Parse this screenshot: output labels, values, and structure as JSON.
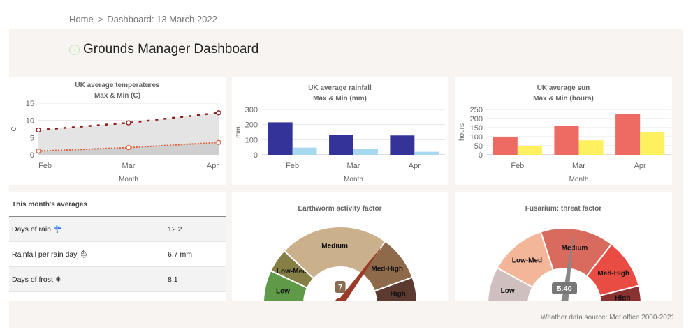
{
  "breadcrumb": {
    "home": "Home",
    "separator": ">",
    "current": "Dashboard: 13 March 2022"
  },
  "page_title": "Grounds Manager Dashboard",
  "chart_data": [
    {
      "type": "line",
      "title": "UK average temperatures",
      "subtitle": "Max & Min (C)",
      "xlabel": "Month",
      "ylabel": "C",
      "categories": [
        "Feb",
        "Mar",
        "Apr"
      ],
      "ylim": [
        0,
        15
      ],
      "yticks": [
        0,
        5,
        10,
        15
      ],
      "series": [
        {
          "values": [
            7.2,
            9.3,
            12.2
          ],
          "color": "#8b1a1a"
        },
        {
          "values": [
            1.1,
            2.1,
            3.6
          ],
          "color": "#e0603c"
        }
      ]
    },
    {
      "type": "bar",
      "title": "UK average rainfall",
      "subtitle": "Max & Min (mm)",
      "xlabel": "Month",
      "ylabel": "mm",
      "categories": [
        "Feb",
        "Mar",
        "Apr"
      ],
      "ylim": [
        0,
        300
      ],
      "yticks": [
        0,
        100,
        200,
        300
      ],
      "series": [
        {
          "values": [
            215,
            130,
            128
          ],
          "color": "#333399"
        },
        {
          "values": [
            48,
            38,
            20
          ],
          "color": "#a8d8f0"
        }
      ]
    },
    {
      "type": "bar",
      "title": "UK average sun",
      "subtitle": "Max & Min (hours)",
      "xlabel": "Month",
      "ylabel": "hours",
      "categories": [
        "Feb",
        "Mar",
        "Apr"
      ],
      "ylim": [
        0,
        250
      ],
      "yticks": [
        0,
        50,
        100,
        150,
        200,
        250
      ],
      "series": [
        {
          "values": [
            100,
            158,
            225
          ],
          "color": "#ee6b63"
        },
        {
          "values": [
            50,
            80,
            123
          ],
          "color": "#fff060"
        }
      ]
    }
  ],
  "gauges": [
    {
      "title": "Earthworm activity factor",
      "value": 7,
      "value_label": "7",
      "range": [
        0,
        10
      ],
      "needle_color": "#9a3a28",
      "label_color": "#8a6a50",
      "bands": [
        {
          "label": "Low",
          "from": 0,
          "to": 1.4,
          "color": "#5f9a48"
        },
        {
          "label": "Low-Med",
          "from": 1.4,
          "to": 2.4,
          "color": "#857f45"
        },
        {
          "label": "Medium",
          "from": 2.4,
          "to": 7,
          "color": "#cbb08c"
        },
        {
          "label": "Med-High",
          "from": 7,
          "to": 8.9,
          "color": "#8f6a4a"
        },
        {
          "label": "High",
          "from": 8.9,
          "to": 10,
          "color": "#5c3a30"
        }
      ]
    },
    {
      "title": "Fusarium: threat factor",
      "value": 5.4,
      "value_label": "5.40",
      "range": [
        0,
        10
      ],
      "needle_color": "#888888",
      "label_color": "#777777",
      "bands": [
        {
          "label": "Low",
          "from": 0,
          "to": 1.6,
          "color": "#d0bfbf"
        },
        {
          "label": "Low-Med",
          "from": 1.6,
          "to": 4,
          "color": "#f4b698"
        },
        {
          "label": "Medium",
          "from": 4,
          "to": 7.1,
          "color": "#d86a5e"
        },
        {
          "label": "Med-High",
          "from": 7.1,
          "to": 9.2,
          "color": "#e84c42"
        },
        {
          "label": "High",
          "from": 9.2,
          "to": 10,
          "color": "#8a3232"
        }
      ]
    }
  ],
  "averages": {
    "title": "This month's averages",
    "rows": [
      {
        "label": "Days of rain",
        "icon": "rain-cloud-icon",
        "glyph": "☔",
        "value": "12.2"
      },
      {
        "label": "Rainfall per rain day",
        "icon": "sun-rain-cloud-icon",
        "glyph": "🌦",
        "value": "6.7 mm"
      },
      {
        "label": "Days of frost",
        "icon": "icicles-icon",
        "glyph": "❄",
        "value": "8.1"
      }
    ]
  },
  "source": "Weather data source: Met office 2000-2021"
}
